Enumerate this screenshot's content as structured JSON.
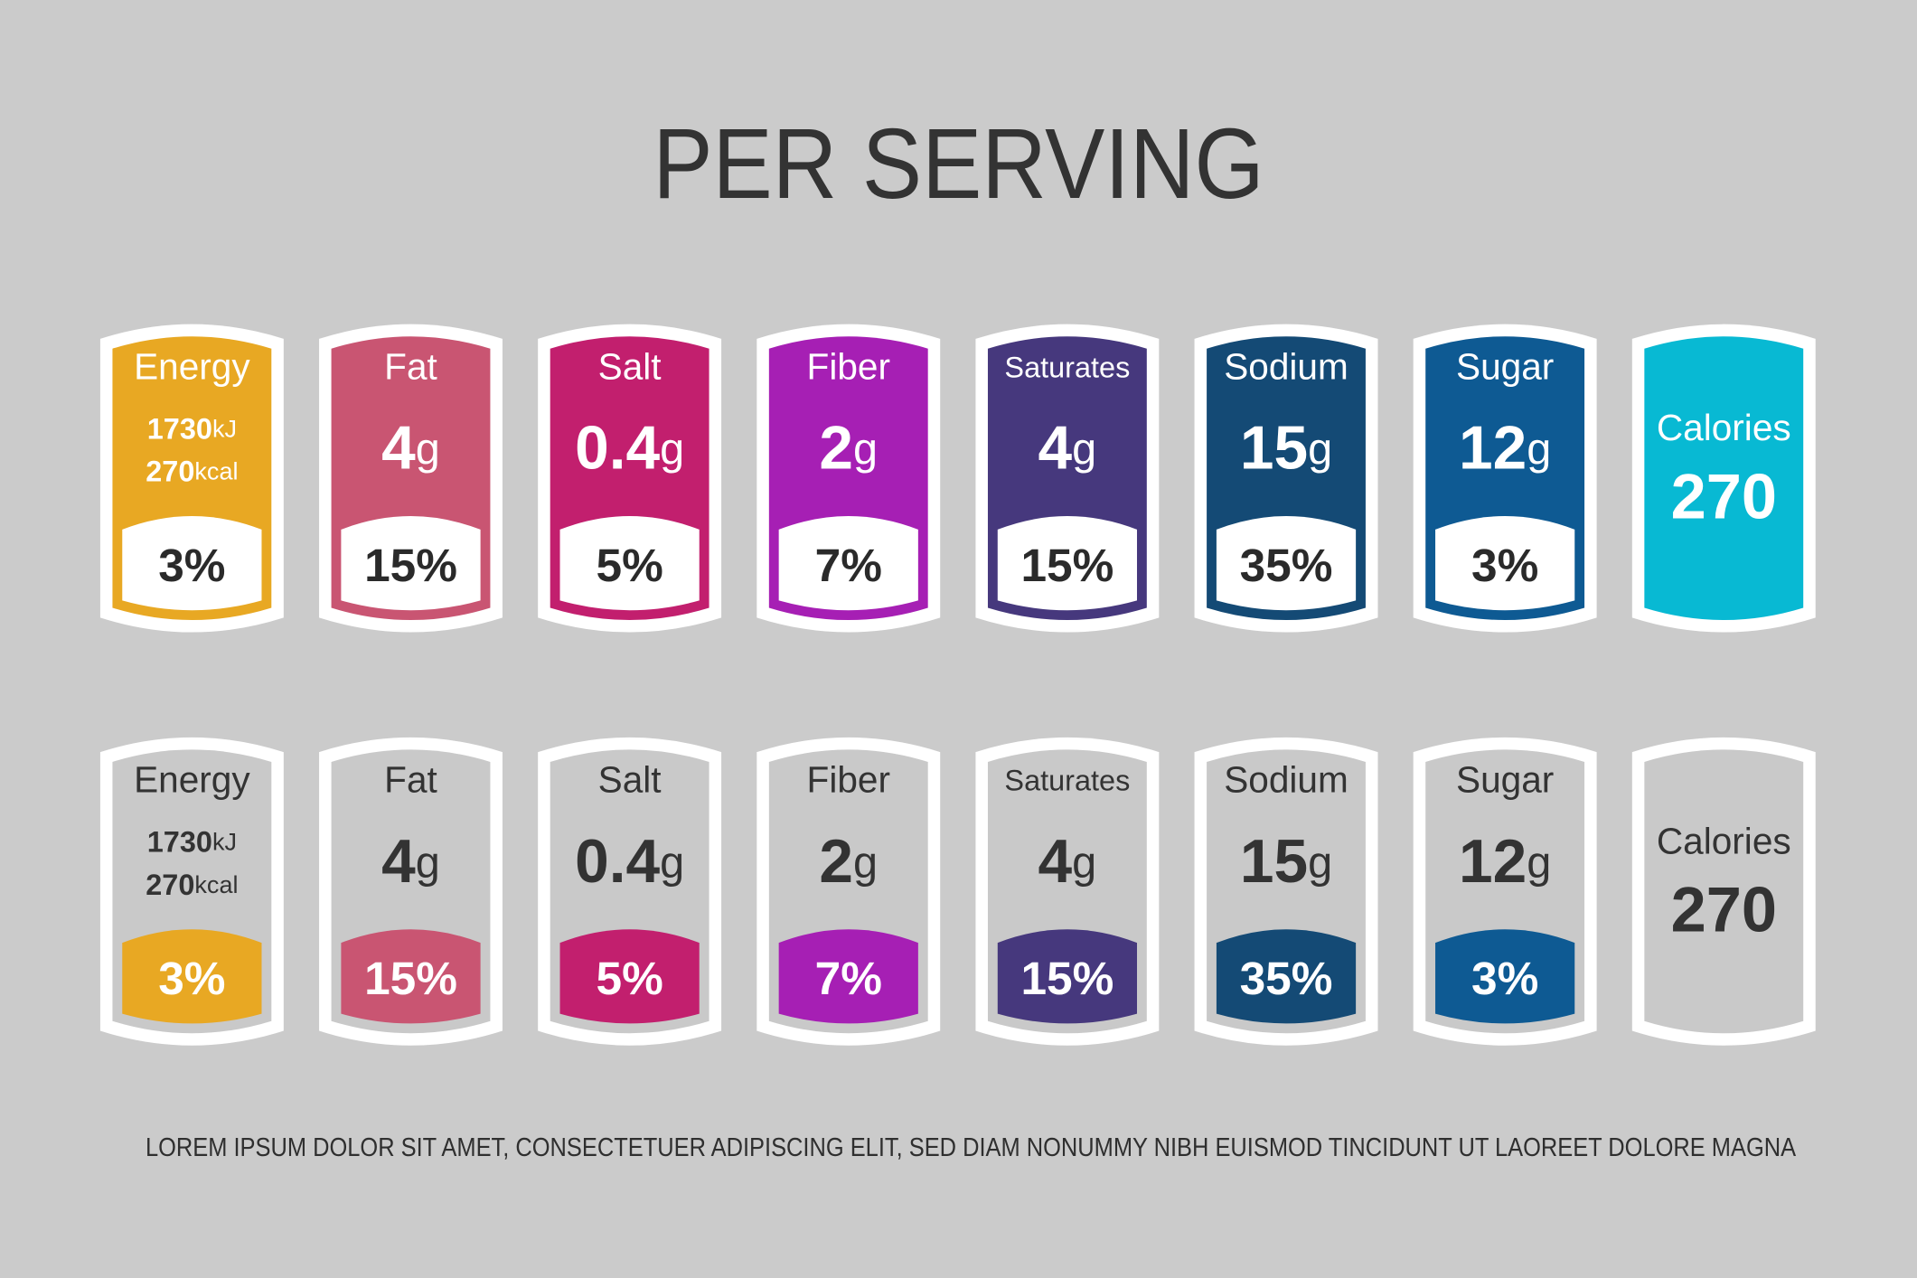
{
  "title": "PER SERVING",
  "labels": [
    {
      "name": "Energy",
      "kj": "1730",
      "kj_unit": "kJ",
      "kcal": "270",
      "kcal_unit": "kcal",
      "percent": "3%",
      "color": "#e8a823"
    },
    {
      "name": "Fat",
      "amount": "4",
      "unit": "g",
      "percent": "15%",
      "color": "#c95572"
    },
    {
      "name": "Salt",
      "amount": "0.4",
      "unit": "g",
      "percent": "5%",
      "color": "#c21f6e"
    },
    {
      "name": "Fiber",
      "amount": "2",
      "unit": "g",
      "percent": "7%",
      "color": "#a61fb4"
    },
    {
      "name": "Saturates",
      "amount": "4",
      "unit": "g",
      "percent": "15%",
      "color": "#46387d"
    },
    {
      "name": "Sodium",
      "amount": "15",
      "unit": "g",
      "percent": "35%",
      "color": "#144a75"
    },
    {
      "name": "Sugar",
      "amount": "12",
      "unit": "g",
      "percent": "3%",
      "color": "#0e5a93"
    },
    {
      "name": "Calories",
      "amount": "270",
      "color": "#08b9d3"
    }
  ],
  "footer": "LOREM IPSUM DOLOR SIT AMET, CONSECTETUER ADIPISCING ELIT, SED DIAM NONUMMY NIBH EUISMOD TINCIDUNT UT LAOREET DOLORE MAGNA"
}
